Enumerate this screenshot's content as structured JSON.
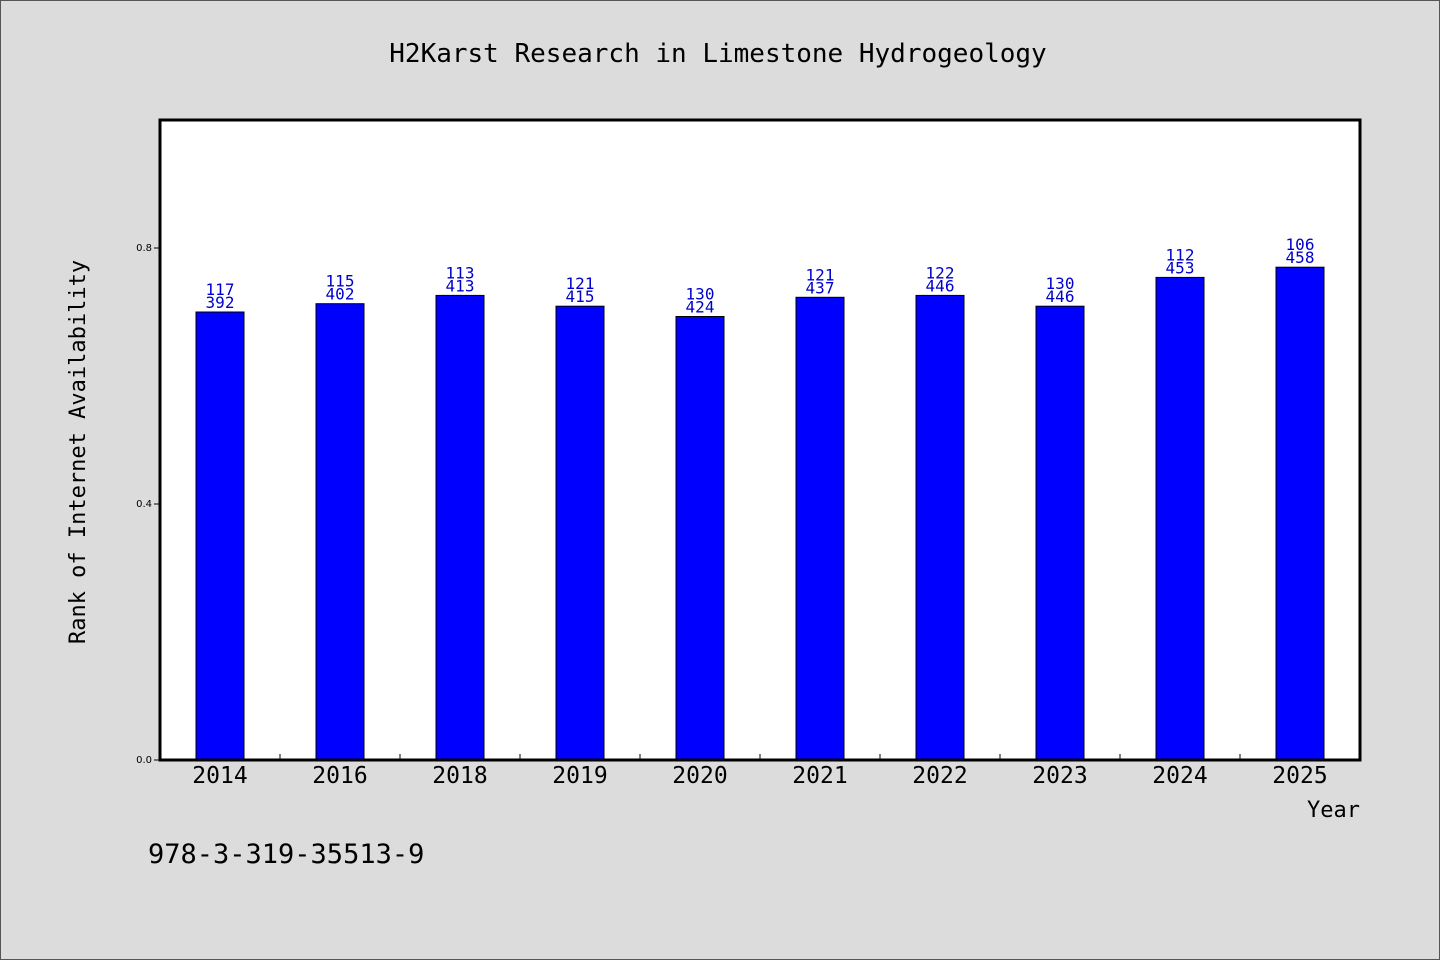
{
  "chart_data": {
    "type": "bar",
    "title": "H2Karst Research in Limestone Hydrogeology",
    "xlabel": "Year",
    "ylabel": "Rank of Internet Availability",
    "categories": [
      "2014",
      "2016",
      "2018",
      "2019",
      "2020",
      "2021",
      "2022",
      "2023",
      "2024",
      "2025"
    ],
    "values": [
      0.7,
      0.713,
      0.726,
      0.709,
      0.693,
      0.723,
      0.726,
      0.709,
      0.754,
      0.77
    ],
    "bar_labels": [
      [
        "117",
        "392"
      ],
      [
        "115",
        "402"
      ],
      [
        "113",
        "413"
      ],
      [
        "121",
        "415"
      ],
      [
        "130",
        "424"
      ],
      [
        "121",
        "437"
      ],
      [
        "122",
        "446"
      ],
      [
        "130",
        "446"
      ],
      [
        "112",
        "453"
      ],
      [
        "106",
        "458"
      ]
    ],
    "ylim": [
      0.0,
      1.0
    ],
    "yticks": [
      0.0,
      0.4,
      0.8
    ],
    "ytick_labels": [
      "0.0",
      "0.4",
      "0.8"
    ],
    "grid": false,
    "legend": "none",
    "colors": {
      "bar": "#0000ff",
      "bar_label": "#0000cc",
      "plot_background": "#ffffff",
      "figure_background": "#dcdcdc"
    }
  },
  "footer": {
    "isbn": "978-3-319-35513-9"
  }
}
